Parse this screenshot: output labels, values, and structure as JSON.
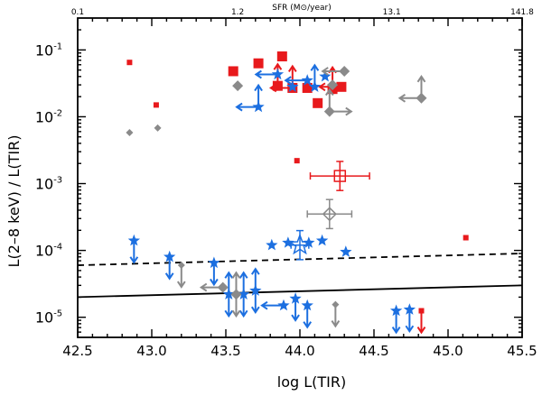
{
  "chart_data": {
    "type": "scatter",
    "title": "",
    "xlabel": "log L(TIR)",
    "ylabel": "L(2–8 keV) / L(TIR)",
    "top_axis_label": "SFR (M⊙/year)",
    "xlim": [
      42.5,
      45.5
    ],
    "ylim": [
      5e-06,
      0.3
    ],
    "yscale": "log",
    "x_ticks": [
      "42.5",
      "43.0",
      "43.5",
      "44.0",
      "44.5",
      "45.0",
      "45.5"
    ],
    "y_ticks": [
      {
        "base": "10",
        "exp": "-1",
        "value": 0.1
      },
      {
        "base": "10",
        "exp": "-2",
        "value": 0.01
      },
      {
        "base": "10",
        "exp": "-3",
        "value": 0.001
      },
      {
        "base": "10",
        "exp": "-4",
        "value": 0.0001
      },
      {
        "base": "10",
        "exp": "-5",
        "value": 1e-05
      }
    ],
    "top_ticks": [
      {
        "label": "0.1",
        "x": 42.5
      },
      {
        "label": "1.2",
        "x": 43.58
      },
      {
        "label": "13.1",
        "x": 44.62
      },
      {
        "label": "141.8",
        "x": 45.5
      }
    ],
    "grid": false,
    "lines": [
      {
        "style": "dashed",
        "points": [
          [
            42.5,
            6e-05
          ],
          [
            45.5,
            9e-05
          ]
        ]
      },
      {
        "style": "solid",
        "points": [
          [
            42.5,
            2e-05
          ],
          [
            45.5,
            3e-05
          ]
        ]
      }
    ],
    "colors": {
      "red": "#e8191c",
      "blue": "#1c6fe0",
      "gray": "#8a8a8a",
      "axis": "#000000"
    },
    "series": [
      {
        "color": "red",
        "points": [
          {
            "x": 42.85,
            "y": 0.065,
            "m": "square-small"
          },
          {
            "x": 43.03,
            "y": 0.015,
            "m": "square-small"
          },
          {
            "x": 43.55,
            "y": 0.048,
            "m": "square"
          },
          {
            "x": 43.72,
            "y": 0.063,
            "m": "square"
          },
          {
            "x": 43.88,
            "y": 0.08,
            "m": "square"
          },
          {
            "x": 43.85,
            "y": 0.029,
            "m": "square",
            "arrows": [
              "up"
            ]
          },
          {
            "x": 43.95,
            "y": 0.027,
            "m": "square",
            "arrows": [
              "left",
              "up"
            ]
          },
          {
            "x": 44.05,
            "y": 0.027,
            "m": "square"
          },
          {
            "x": 44.12,
            "y": 0.016,
            "m": "square"
          },
          {
            "x": 44.22,
            "y": 0.026,
            "m": "square",
            "arrows": [
              "up"
            ]
          },
          {
            "x": 44.28,
            "y": 0.028,
            "m": "square",
            "arrows": [
              "left"
            ]
          },
          {
            "x": 43.98,
            "y": 0.0022,
            "m": "square-small"
          },
          {
            "x": 45.12,
            "y": 0.000155,
            "m": "square-small"
          },
          {
            "x": 44.82,
            "y": 1.25e-05,
            "m": "square-small",
            "arrows": [
              "down"
            ]
          },
          {
            "x": 44.27,
            "y": 0.0013,
            "m": "square-open",
            "xerr": 0.2
          }
        ]
      },
      {
        "color": "blue",
        "points": [
          {
            "x": 43.85,
            "y": 0.043,
            "m": "star",
            "arrows": [
              "left"
            ]
          },
          {
            "x": 43.95,
            "y": 0.028,
            "m": "star"
          },
          {
            "x": 44.05,
            "y": 0.035,
            "m": "star",
            "arrows": [
              "left"
            ]
          },
          {
            "x": 44.1,
            "y": 0.028,
            "m": "star",
            "arrows": [
              "up"
            ]
          },
          {
            "x": 44.17,
            "y": 0.04,
            "m": "star"
          },
          {
            "x": 43.72,
            "y": 0.014,
            "m": "star",
            "arrows": [
              "left",
              "up"
            ]
          },
          {
            "x": 42.88,
            "y": 0.00014,
            "m": "star",
            "arrows": [
              "down"
            ]
          },
          {
            "x": 43.12,
            "y": 8e-05,
            "m": "star",
            "arrows": [
              "down"
            ]
          },
          {
            "x": 43.81,
            "y": 0.00012,
            "m": "star"
          },
          {
            "x": 43.92,
            "y": 0.00013,
            "m": "star"
          },
          {
            "x": 44.06,
            "y": 0.00013,
            "m": "star"
          },
          {
            "x": 44.15,
            "y": 0.00014,
            "m": "star"
          },
          {
            "x": 44.31,
            "y": 9.5e-05,
            "m": "star"
          },
          {
            "x": 44.0,
            "y": 0.00012,
            "m": "star-open",
            "xerr": 0.06
          },
          {
            "x": 43.42,
            "y": 6.5e-05,
            "m": "star",
            "arrows": [
              "down"
            ]
          },
          {
            "x": 43.52,
            "y": 2.2e-05,
            "m": "star",
            "arrows": [
              "up",
              "down"
            ]
          },
          {
            "x": 43.62,
            "y": 2.2e-05,
            "m": "star",
            "arrows": [
              "up",
              "down"
            ]
          },
          {
            "x": 43.7,
            "y": 2.5e-05,
            "m": "star",
            "arrows": [
              "up",
              "down"
            ]
          },
          {
            "x": 43.89,
            "y": 1.5e-05,
            "m": "star",
            "arrows": [
              "left"
            ]
          },
          {
            "x": 43.97,
            "y": 1.9e-05,
            "m": "star",
            "arrows": [
              "down"
            ]
          },
          {
            "x": 44.05,
            "y": 1.5e-05,
            "m": "star",
            "arrows": [
              "down"
            ]
          },
          {
            "x": 44.65,
            "y": 1.25e-05,
            "m": "star",
            "arrows": [
              "down"
            ]
          },
          {
            "x": 44.74,
            "y": 1.3e-05,
            "m": "star",
            "arrows": [
              "down"
            ]
          }
        ]
      },
      {
        "color": "gray",
        "points": [
          {
            "x": 42.85,
            "y": 0.0058,
            "m": "diamond-small"
          },
          {
            "x": 43.04,
            "y": 0.0068,
            "m": "diamond-small"
          },
          {
            "x": 43.58,
            "y": 0.029,
            "m": "diamond"
          },
          {
            "x": 44.22,
            "y": 0.03,
            "m": "diamond"
          },
          {
            "x": 44.3,
            "y": 0.048,
            "m": "diamond",
            "arrows": [
              "left"
            ]
          },
          {
            "x": 44.2,
            "y": 0.012,
            "m": "diamond",
            "arrows": [
              "up",
              "right"
            ]
          },
          {
            "x": 44.82,
            "y": 0.019,
            "m": "diamond",
            "arrows": [
              "left",
              "up"
            ]
          },
          {
            "x": 44.2,
            "y": 0.00035,
            "m": "diamond-open",
            "xerr": 0.15
          },
          {
            "x": 43.2,
            "y": 6e-05,
            "m": "diamond-small",
            "arrows": [
              "down"
            ]
          },
          {
            "x": 43.48,
            "y": 2.8e-05,
            "m": "diamond",
            "arrows": [
              "left"
            ]
          },
          {
            "x": 43.57,
            "y": 2.2e-05,
            "m": "diamond",
            "arrows": [
              "up",
              "down"
            ]
          },
          {
            "x": 44.24,
            "y": 1.55e-05,
            "m": "diamond-small",
            "arrows": [
              "down"
            ]
          }
        ]
      }
    ]
  }
}
